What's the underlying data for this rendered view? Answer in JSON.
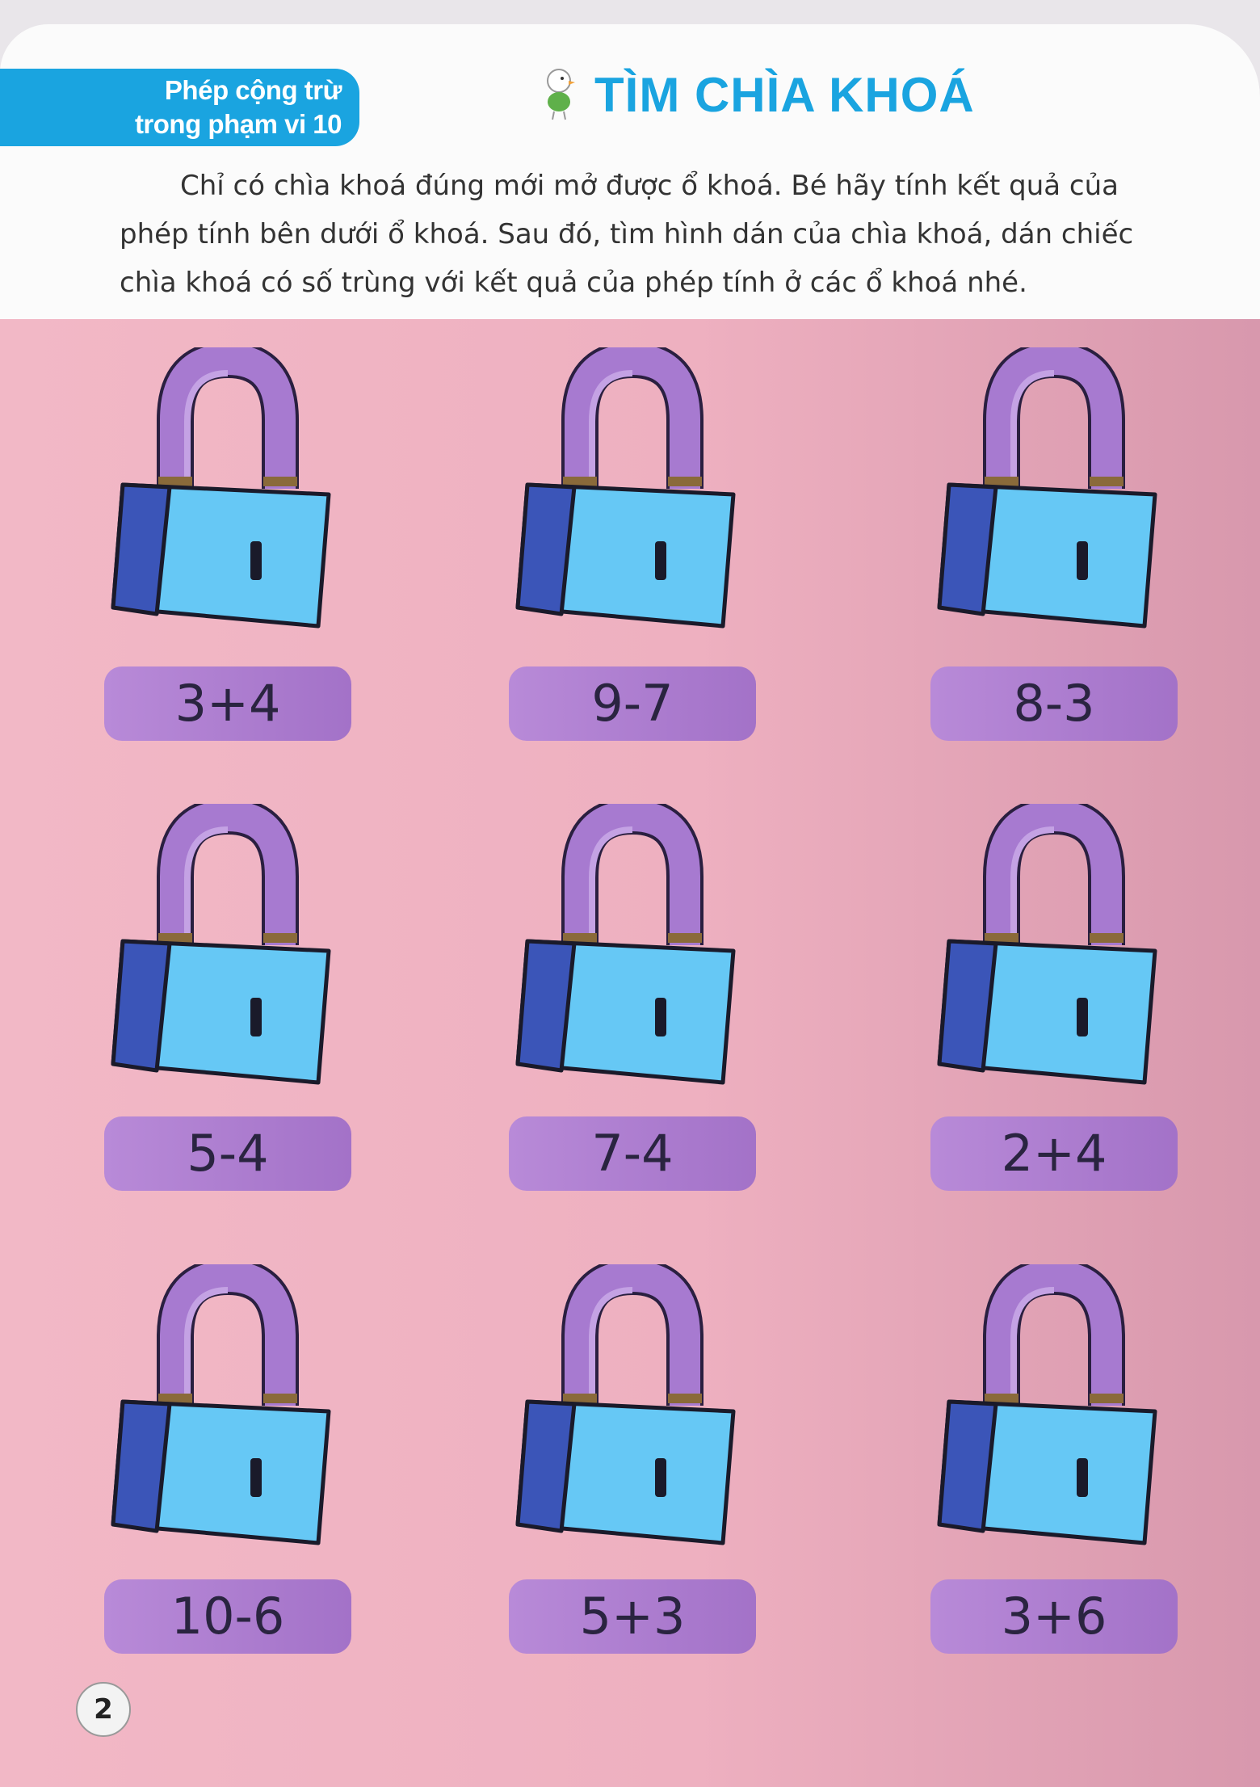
{
  "header": {
    "tag_line1": "Phép cộng trừ",
    "tag_line2": "trong phạm vi 10",
    "title": "TÌM CHÌA KHOÁ",
    "instruction": "Chỉ có chìa khoá đúng mới mở được ổ khoá. Bé hãy tính kết quả của phép tính bên dưới ổ khoá. Sau đó, tìm hình dán của chìa khoá, dán chiếc chìa khoá có số trùng với kết quả của phép tính ở các ổ khoá nhé."
  },
  "locks": [
    {
      "expression": "3+4"
    },
    {
      "expression": "9-7"
    },
    {
      "expression": "8-3"
    },
    {
      "expression": "5-4"
    },
    {
      "expression": "7-4"
    },
    {
      "expression": "2+4"
    },
    {
      "expression": "10-6"
    },
    {
      "expression": "5+3"
    },
    {
      "expression": "3+6"
    }
  ],
  "page_number": "2",
  "colors": {
    "accent": "#1aa4e0",
    "background": "#f2b8c6",
    "lock_body": "#66c8f5",
    "lock_side": "#3b55b8",
    "shackle": "#a77ad0",
    "label": "#b088d6"
  }
}
